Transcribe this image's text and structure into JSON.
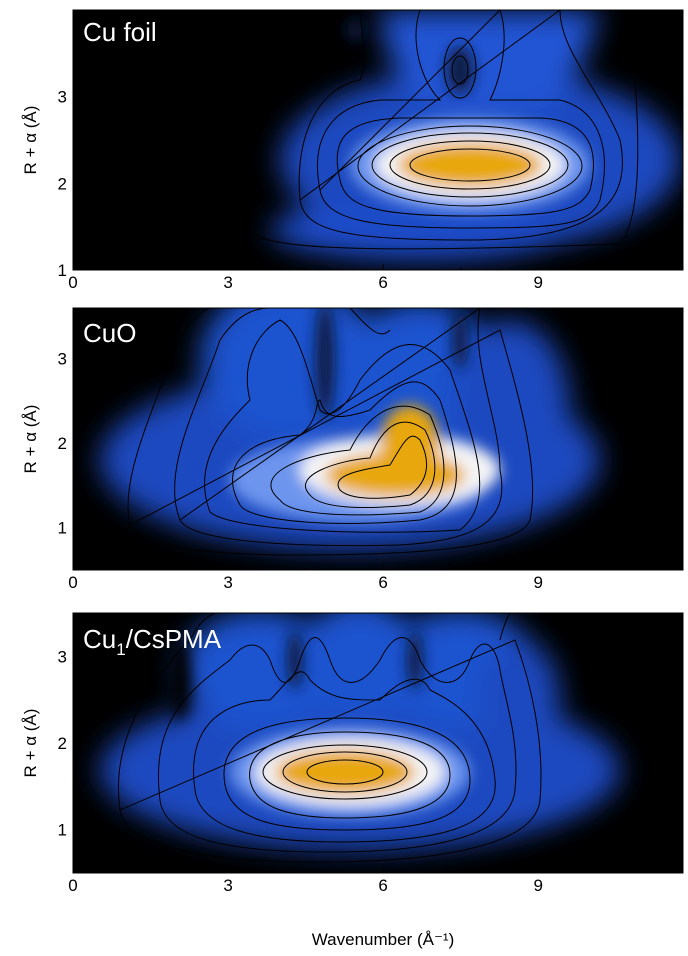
{
  "chart_data": [
    {
      "type": "heatmap",
      "title": "Cu foil",
      "xlabel": "",
      "ylabel": "R + α (Å)",
      "xlim": [
        0,
        11.8
      ],
      "ylim": [
        1,
        4
      ],
      "xticks": [
        0,
        3,
        6,
        9
      ],
      "yticks": [
        1,
        2,
        3
      ],
      "colormap": [
        "#000000",
        "#1f55d6",
        "#ffffff",
        "#e8a70a"
      ],
      "peaks": [
        {
          "x": 7.7,
          "y": 2.2,
          "sx": 2.0,
          "sy": 0.35,
          "amp": 1.0
        },
        {
          "x": 7.5,
          "y": 3.3,
          "sx": 0.9,
          "sy": 0.9,
          "amp": 0.55
        },
        {
          "x": 5.2,
          "y": 3.0,
          "sx": 1.6,
          "sy": 1.0,
          "amp": 0.45
        },
        {
          "x": 9.6,
          "y": 3.2,
          "sx": 1.2,
          "sy": 0.9,
          "amp": 0.4
        }
      ]
    },
    {
      "type": "heatmap",
      "title": "CuO",
      "xlabel": "",
      "ylabel": "R + α (Å)",
      "xlim": [
        0,
        11.8
      ],
      "ylim": [
        0.5,
        3.6
      ],
      "xticks": [
        0,
        3,
        6,
        9
      ],
      "yticks": [
        1,
        2,
        3
      ],
      "colormap": [
        "#000000",
        "#1f55d6",
        "#ffffff",
        "#e8a70a"
      ],
      "peaks": [
        {
          "x": 6.3,
          "y": 1.55,
          "sx": 1.1,
          "sy": 0.45,
          "amp": 1.0
        },
        {
          "x": 5.0,
          "y": 1.35,
          "sx": 1.6,
          "sy": 0.3,
          "amp": 0.7
        },
        {
          "x": 3.8,
          "y": 2.6,
          "sx": 1.1,
          "sy": 1.1,
          "amp": 0.55
        },
        {
          "x": 6.5,
          "y": 2.7,
          "sx": 1.0,
          "sy": 1.0,
          "amp": 0.5
        },
        {
          "x": 8.3,
          "y": 2.2,
          "sx": 0.9,
          "sy": 1.2,
          "amp": 0.4
        }
      ]
    },
    {
      "type": "heatmap",
      "title": "Cu1/CsPMA",
      "xlabel": "Wavenumber (Å⁻¹)",
      "ylabel": "R + α (Å)",
      "xlim": [
        0,
        11.8
      ],
      "ylim": [
        0.5,
        3.5
      ],
      "xticks": [
        0,
        3,
        6,
        9
      ],
      "yticks": [
        1,
        2,
        3
      ],
      "colormap": [
        "#000000",
        "#1f55d6",
        "#ffffff",
        "#e8a70a"
      ],
      "peaks": [
        {
          "x": 5.3,
          "y": 1.35,
          "sx": 1.6,
          "sy": 0.35,
          "amp": 1.0
        },
        {
          "x": 3.5,
          "y": 2.6,
          "sx": 1.0,
          "sy": 0.9,
          "amp": 0.45
        },
        {
          "x": 5.5,
          "y": 2.8,
          "sx": 1.0,
          "sy": 0.8,
          "amp": 0.45
        },
        {
          "x": 7.3,
          "y": 2.5,
          "sx": 1.1,
          "sy": 1.0,
          "amp": 0.45
        }
      ]
    }
  ]
}
